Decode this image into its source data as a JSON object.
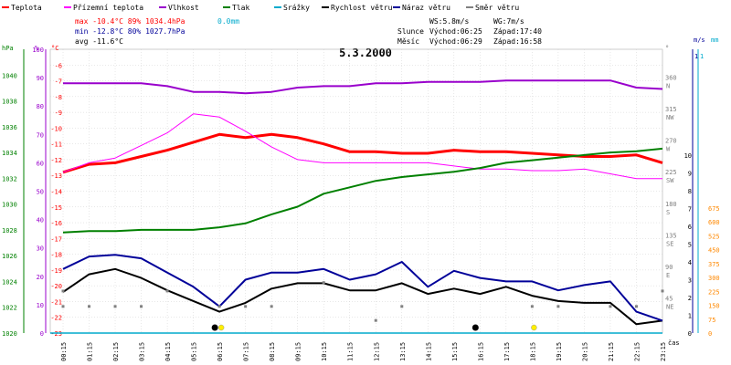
{
  "chart_data": {
    "type": "line",
    "title": "5.3.2000",
    "x_unit_label": "čas",
    "x_ticks": [
      "00:15",
      "01:15",
      "02:15",
      "03:15",
      "04:15",
      "05:15",
      "06:15",
      "07:15",
      "08:15",
      "09:15",
      "10:15",
      "11:15",
      "12:15",
      "13:15",
      "14:15",
      "15:15",
      "16:15",
      "17:15",
      "18:15",
      "19:15",
      "20:15",
      "21:15",
      "22:15",
      "23:15"
    ],
    "grid": true,
    "legend": [
      {
        "label": "Teplota",
        "color": "#ff0000"
      },
      {
        "label": "Přízemní teplota",
        "color": "#ff00ff"
      },
      {
        "label": "Vlhkost",
        "color": "#9900cc"
      },
      {
        "label": "Tlak",
        "color": "#008000"
      },
      {
        "label": "Srážky",
        "color": "#00aacc"
      },
      {
        "label": "Rychlost větru",
        "color": "#000000"
      },
      {
        "label": "Náraz větru",
        "color": "#000099"
      },
      {
        "label": "Směr větru",
        "color": "#808080"
      }
    ],
    "stats": {
      "max": "max -10.4°C 89% 1034.4hPa",
      "max_rain": "0.0mm",
      "min": "min -12.8°C 80% 1027.7hPa",
      "avg": "avg -11.6°C"
    },
    "info": {
      "ws": "WS:5.8m/s",
      "wg": "WG:7m/s",
      "sun_label": "Slunce",
      "sun_rise": "Východ:06:25",
      "sun_set": "Západ:17:40",
      "moon_label": "Měsíc",
      "moon_rise": "Východ:06:29",
      "moon_set": "Západ:16:58"
    },
    "axes": {
      "hpa": {
        "unit": "hPa",
        "range": [
          1020,
          1042
        ],
        "ticks": [
          "1040",
          "1038",
          "1036",
          "1034",
          "1032",
          "1030",
          "1028",
          "1026",
          "1024",
          "1022",
          "1020"
        ]
      },
      "percent": {
        "unit": "%",
        "ticks": [
          "100",
          "90",
          "80",
          "70",
          "60",
          "50",
          "40",
          "30",
          "20",
          "10",
          "0"
        ]
      },
      "celsius": {
        "unit": "°C",
        "range": [
          -23,
          -5
        ],
        "ticks": [
          "-6",
          "-7",
          "-8",
          "-9",
          "-10",
          "-11",
          "-12",
          "-13",
          "-14",
          "-15",
          "-16",
          "-17",
          "-18",
          "-19",
          "-20",
          "-21",
          "-22",
          "-23"
        ]
      },
      "direction": {
        "unit": "°",
        "ticks": [
          "360",
          "N",
          "315",
          "NW",
          "270",
          "W",
          "225",
          "SW",
          "180",
          "S",
          "135",
          "SE",
          "90",
          "E",
          "45",
          "NE"
        ]
      },
      "wind": {
        "unit": "m/s",
        "range": [
          0,
          10
        ],
        "ticks": [
          "10",
          "9",
          "8",
          "7",
          "6",
          "5",
          "4",
          "3",
          "2",
          "1",
          "0"
        ],
        "top_label": "1"
      },
      "rain": {
        "unit": "mm",
        "top_label": "1",
        "ticks": [
          "675",
          "600",
          "525",
          "450",
          "375",
          "300",
          "225",
          "150",
          "75",
          "0"
        ]
      }
    },
    "series": [
      {
        "name": "Teplota",
        "color": "#ff0000",
        "unit": "°C",
        "values": [
          -12.8,
          -12.3,
          -12.2,
          -11.8,
          -11.4,
          -10.9,
          -10.4,
          -10.6,
          -10.4,
          -10.6,
          -11.0,
          -11.5,
          -11.5,
          -11.6,
          -11.6,
          -11.4,
          -11.5,
          -11.5,
          -11.6,
          -11.7,
          -11.8,
          -11.8,
          -11.7,
          -12.2
        ]
      },
      {
        "name": "Přízemní teplota",
        "color": "#ff00ff",
        "unit": "°C",
        "values": [
          -12.8,
          -12.2,
          -11.9,
          -11.1,
          -10.3,
          -9.1,
          -9.3,
          -10.2,
          -11.2,
          -12.0,
          -12.2,
          -12.2,
          -12.2,
          -12.2,
          -12.2,
          -12.4,
          -12.6,
          -12.6,
          -12.7,
          -12.7,
          -12.6,
          -12.9,
          -13.2,
          -13.2
        ]
      },
      {
        "name": "Vlhkost",
        "color": "#9900cc",
        "unit": "%",
        "values": [
          88,
          88,
          88,
          88,
          87,
          85,
          85,
          84.5,
          85,
          86.5,
          87,
          87,
          88,
          88,
          88.5,
          88.5,
          88.5,
          89,
          89,
          89,
          89,
          89,
          86.5,
          86
        ]
      },
      {
        "name": "Tlak",
        "color": "#008000",
        "unit": "hPa",
        "values": [
          1027.8,
          1027.9,
          1027.9,
          1028.0,
          1028.0,
          1028.0,
          1028.2,
          1028.5,
          1029.2,
          1029.8,
          1030.8,
          1031.3,
          1031.8,
          1032.1,
          1032.3,
          1032.5,
          1032.8,
          1033.2,
          1033.4,
          1033.6,
          1033.8,
          1034.0,
          1034.1,
          1034.3
        ]
      },
      {
        "name": "Rychlost větru",
        "color": "#000000",
        "unit": "m/s",
        "values": [
          2.3,
          3.3,
          3.6,
          3.1,
          2.4,
          1.8,
          1.2,
          1.7,
          2.5,
          2.8,
          2.8,
          2.4,
          2.4,
          2.8,
          2.2,
          2.5,
          2.2,
          2.6,
          2.1,
          1.8,
          1.7,
          1.7,
          0.5,
          0.7
        ]
      },
      {
        "name": "Náraz větru",
        "color": "#000099",
        "unit": "m/s",
        "values": [
          3.6,
          4.3,
          4.4,
          4.2,
          3.4,
          2.6,
          1.5,
          3.0,
          3.4,
          3.4,
          3.6,
          3.0,
          3.3,
          4.0,
          2.6,
          3.5,
          3.1,
          2.9,
          2.9,
          2.4,
          2.7,
          2.9,
          1.2,
          0.7
        ]
      },
      {
        "name": "Směr větru",
        "color": "#808080",
        "unit": "°",
        "style": "dots",
        "values": [
          60,
          null,
          null,
          null,
          60,
          null,
          null,
          null,
          null,
          null,
          72,
          null,
          null,
          null,
          null,
          null,
          null,
          null,
          null,
          null,
          null,
          null,
          null,
          60
        ],
        "low_values": [
          38,
          38,
          38,
          38,
          null,
          null,
          38,
          38,
          38,
          null,
          null,
          null,
          18,
          38,
          null,
          null,
          null,
          null,
          38,
          38,
          null,
          38,
          38,
          null
        ]
      }
    ],
    "markers": [
      {
        "kind": "sun",
        "time": "06:15",
        "color": "#ffee00"
      },
      {
        "kind": "moon",
        "time": "06:15",
        "color": "#000000"
      },
      {
        "kind": "moon",
        "time": "16:15",
        "color": "#000000"
      },
      {
        "kind": "sun",
        "time": "18:15",
        "color": "#ffee00"
      }
    ]
  }
}
